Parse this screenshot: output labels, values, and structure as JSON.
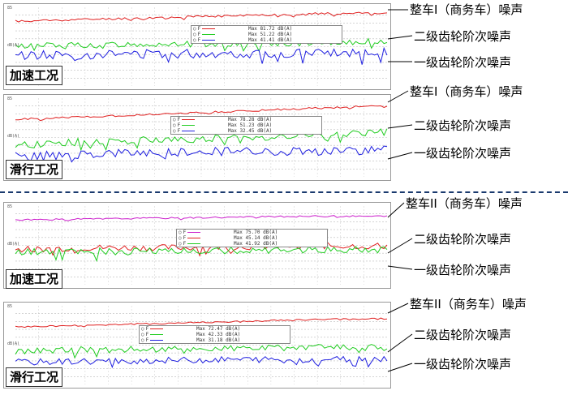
{
  "panels": [
    {
      "condition": "加速工况",
      "ymax_label": "85",
      "ylabel": "dB(A)",
      "legend": [
        {
          "label": "F",
          "color": "#e02020",
          "max": "Max 81.72 dB(A)"
        },
        {
          "label": "F",
          "color": "#20cc20",
          "max": "Max 51.22 dB(A)"
        },
        {
          "label": "F",
          "color": "#2020e0",
          "max": "Max 41.41 dB(A)"
        }
      ],
      "annotations": [
        "整车I（商务车）噪声",
        "二级齿轮阶次噪声",
        "一级齿轮阶次噪声"
      ]
    },
    {
      "condition": "滑行工况",
      "ymax_label": "85",
      "ylabel": "dB(A)",
      "legend": [
        {
          "label": "F",
          "color": "#e02020",
          "max": "Max 78.28 dB(A)"
        },
        {
          "label": "F",
          "color": "#20cc20",
          "max": "Max 51.23 dB(A)"
        },
        {
          "label": "F",
          "color": "#2020e0",
          "max": "Max 32.45 dB(A)"
        }
      ],
      "annotations": [
        "整车I（商务车）噪声",
        "二级齿轮阶次噪声",
        "一级齿轮阶次噪声"
      ]
    },
    {
      "condition": "加速工况",
      "ymax_label": "85",
      "ylabel": "dB(A)",
      "legend": [
        {
          "label": "F",
          "color": "#cc20cc",
          "max": "Max 75.70 dB(A)"
        },
        {
          "label": "F",
          "color": "#e02020",
          "max": "Max 45.14 dB(A)"
        },
        {
          "label": "F",
          "color": "#20cc20",
          "max": "Max 41.92 dB(A)"
        }
      ],
      "annotations": [
        "整车II（商务车）噪声",
        "二级齿轮阶次噪声",
        "一级齿轮阶次噪声"
      ]
    },
    {
      "condition": "滑行工况",
      "ymax_label": "85",
      "ylabel": "dB(A)",
      "legend": [
        {
          "label": "F",
          "color": "#e02020",
          "max": "Max 72.47 dB(A)"
        },
        {
          "label": "F",
          "color": "#20cc20",
          "max": "Max 42.33 dB(A)"
        },
        {
          "label": "F",
          "color": "#2020e0",
          "max": "Max 31.18 dB(A)"
        }
      ],
      "annotations": [
        "整车II（商务车）噪声",
        "二级齿轮阶次噪声",
        "一级齿轮阶次噪声"
      ]
    }
  ],
  "chart_data": [
    {
      "type": "line",
      "title": "",
      "ylabel": "dB(A)",
      "ylim": [
        0,
        85
      ],
      "grid": true,
      "legend_placement": "top-center",
      "series": [
        {
          "name": "F",
          "color": "#e02020",
          "trend": [
            70,
            72,
            74,
            76,
            78,
            79
          ],
          "noise": 1.2,
          "seed": 11
        },
        {
          "name": "F",
          "color": "#20cc20",
          "trend": [
            43,
            44,
            45,
            46,
            47,
            48
          ],
          "noise": 3.5,
          "seed": 12
        },
        {
          "name": "F",
          "color": "#2020e0",
          "trend": [
            33,
            34,
            35,
            35,
            36,
            36
          ],
          "noise": 5.0,
          "seed": 13
        }
      ]
    },
    {
      "type": "line",
      "title": "",
      "ylabel": "dB(A)",
      "ylim": [
        0,
        85
      ],
      "grid": true,
      "legend_placement": "top-center",
      "series": [
        {
          "name": "F",
          "color": "#e02020",
          "trend": [
            62,
            65,
            68,
            71,
            74,
            77
          ],
          "noise": 1.0,
          "seed": 21
        },
        {
          "name": "F",
          "color": "#20cc20",
          "trend": [
            35,
            38,
            40,
            42,
            45,
            48
          ],
          "noise": 4.0,
          "seed": 22
        },
        {
          "name": "F",
          "color": "#2020e0",
          "trend": [
            22,
            24,
            26,
            28,
            28,
            29
          ],
          "noise": 5.0,
          "seed": 23
        }
      ]
    },
    {
      "type": "line",
      "title": "",
      "ylabel": "dB(A)",
      "ylim": [
        0,
        85
      ],
      "grid": true,
      "legend_placement": "top-center",
      "series": [
        {
          "name": "F",
          "color": "#cc20cc",
          "trend": [
            70,
            71,
            72,
            73,
            74,
            74
          ],
          "noise": 0.8,
          "seed": 31
        },
        {
          "name": "F",
          "color": "#e02020",
          "trend": [
            38,
            40,
            40,
            41,
            42,
            42
          ],
          "noise": 3.5,
          "seed": 32
        },
        {
          "name": "F",
          "color": "#20cc20",
          "trend": [
            35,
            36,
            36,
            37,
            38,
            38
          ],
          "noise": 4.0,
          "seed": 33
        }
      ]
    },
    {
      "type": "line",
      "title": "",
      "ylabel": "dB(A)",
      "ylim": [
        0,
        85
      ],
      "grid": true,
      "legend_placement": "top-center",
      "series": [
        {
          "name": "F",
          "color": "#e02020",
          "trend": [
            62,
            64,
            66,
            68,
            70,
            71
          ],
          "noise": 0.9,
          "seed": 41
        },
        {
          "name": "F",
          "color": "#20cc20",
          "trend": [
            36,
            38,
            38,
            39,
            40,
            40
          ],
          "noise": 3.5,
          "seed": 42
        },
        {
          "name": "F",
          "color": "#2020e0",
          "trend": [
            24,
            25,
            26,
            27,
            27,
            28
          ],
          "noise": 3.5,
          "seed": 43
        }
      ]
    }
  ]
}
